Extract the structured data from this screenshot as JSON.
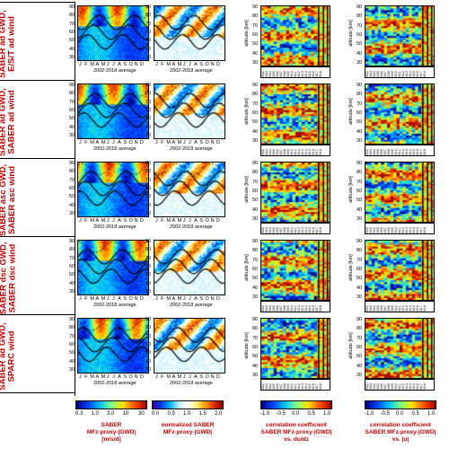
{
  "row_labels": [
    "SABER ad GWD,\nE/S/T ad wind",
    "SABER ad GWD,\nSABER ad wind",
    "SABER asc GWD,\nSABER asc wind",
    "SABER dsc GWD,\nSABER dsc wind",
    "SABER ad GWD,\nSPARC wind"
  ],
  "avg_caption": "2002-2018 average",
  "months": [
    "J",
    "F",
    "M",
    "A",
    "M",
    "J",
    "J",
    "A",
    "S",
    "O",
    "N",
    "D"
  ],
  "alt_ticks": [
    "90",
    "80",
    "70",
    "60",
    "50",
    "40",
    "30"
  ],
  "alt_label": "altitude",
  "alt_unit": "[km]",
  "years": [
    "2002",
    "2003",
    "2004",
    "2005",
    "2006",
    "2007",
    "2008",
    "2009",
    "2010",
    "2011",
    "2012",
    "2013",
    "2014",
    "2015",
    "2016",
    "2017",
    "2018"
  ],
  "colorbars": {
    "gwd": {
      "ticks": [
        "0.3",
        "1.0",
        "3.0",
        "10",
        "30"
      ],
      "label_line1": "SABER",
      "label_line2": "MFz-proxy-|GWD|",
      "label_line3": "[m/s/d]"
    },
    "norm": {
      "ticks": [
        "0.0",
        "0.5",
        "1.0",
        "1.5",
        "2.0"
      ],
      "label_line1": "normalized SABER",
      "label_line2": "MFz-proxy-|GWD|"
    },
    "corr1": {
      "ticks": [
        "-1.0",
        "-0.5",
        "0.0",
        "0.5",
        "1.0"
      ],
      "label_line1": "correlation coefficient",
      "label_line2": "SABER MFz-proxy-|GWD|",
      "label_line3": "vs. du/dz"
    },
    "corr2": {
      "ticks": [
        "-1.0",
        "-0.5",
        "0.0",
        "0.5",
        "1.0"
      ],
      "label_line1": "correlation coefficient",
      "label_line2": "SABER MFz-proxy-|GWD|",
      "label_line3": "vs. |u|"
    }
  },
  "colors": {
    "label_red": "#c00000"
  }
}
